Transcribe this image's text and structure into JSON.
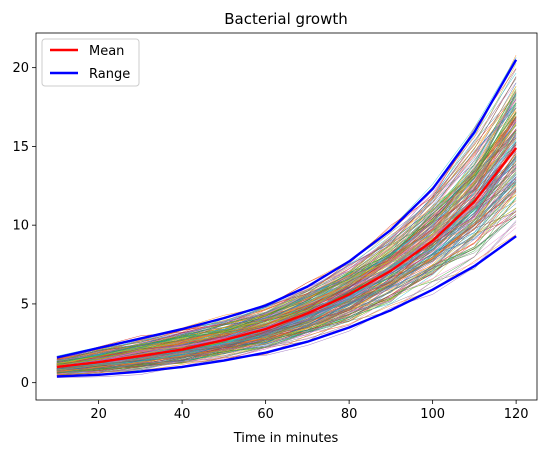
{
  "chart_data": {
    "type": "line",
    "title": "Bacterial growth",
    "xlabel": "Time in minutes",
    "ylabel": "",
    "xlim": [
      5,
      125
    ],
    "ylim": [
      -1.1,
      22.2
    ],
    "xticks": [
      20,
      40,
      60,
      80,
      100,
      120
    ],
    "yticks": [
      0,
      5,
      10,
      15,
      20
    ],
    "grid": false,
    "legend_position": "top-left",
    "x": [
      10,
      20,
      30,
      40,
      50,
      60,
      70,
      80,
      90,
      100,
      110,
      120
    ],
    "series": [
      {
        "name": "Mean",
        "color": "#ff0000",
        "values": [
          1.0,
          1.3,
          1.7,
          2.1,
          2.7,
          3.4,
          4.4,
          5.6,
          7.1,
          9.0,
          11.5,
          14.9
        ]
      },
      {
        "name": "Range",
        "color": "#0000ff",
        "values": [
          1.6,
          2.2,
          2.8,
          3.4,
          4.1,
          4.9,
          6.1,
          7.7,
          9.7,
          12.3,
          15.9,
          20.5
        ]
      },
      {
        "name": "",
        "color": "#0000ff",
        "values": [
          0.4,
          0.5,
          0.7,
          1.0,
          1.4,
          1.9,
          2.6,
          3.5,
          4.6,
          5.9,
          7.4,
          9.3
        ]
      }
    ],
    "background_runs": {
      "count": 250,
      "low_end": 9.3,
      "high_end": 20.5
    }
  }
}
